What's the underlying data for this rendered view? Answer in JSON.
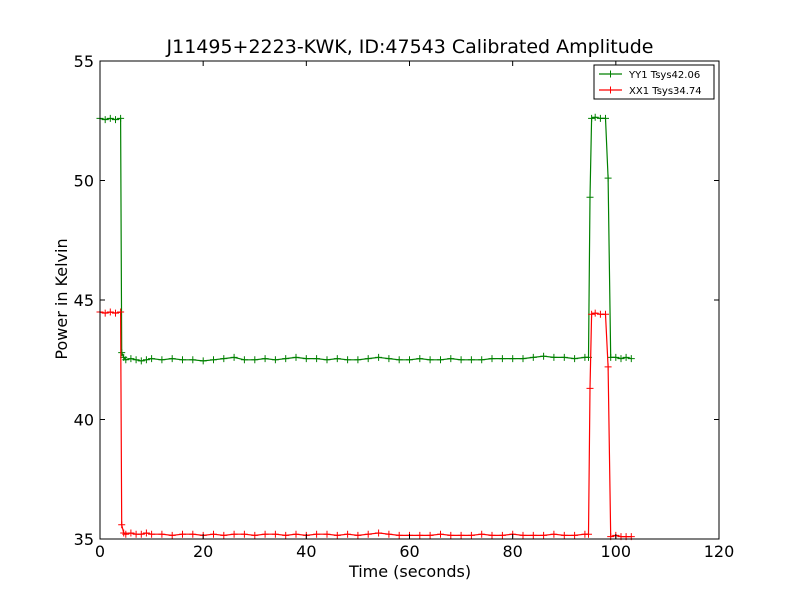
{
  "chart_data": {
    "type": "line",
    "title": "J11495+2223-KWK, ID:47543 Calibrated Amplitude",
    "xlabel": "Time (seconds)",
    "ylabel": "Power in Kelvin",
    "xlim": [
      0,
      120
    ],
    "ylim": [
      35,
      55
    ],
    "xticks": [
      0,
      20,
      40,
      60,
      80,
      100,
      120
    ],
    "yticks": [
      35,
      40,
      45,
      50,
      55
    ],
    "grid": false,
    "legend_position": "top-right",
    "series": [
      {
        "name": "YY1 Tsys42.06",
        "color": "#008000",
        "points": [
          [
            0,
            52.6
          ],
          [
            1,
            52.55
          ],
          [
            2,
            52.6
          ],
          [
            3,
            52.55
          ],
          [
            4,
            52.6
          ],
          [
            4.2,
            42.8
          ],
          [
            4.6,
            42.6
          ],
          [
            5,
            42.5
          ],
          [
            6,
            42.55
          ],
          [
            7,
            42.5
          ],
          [
            8,
            42.45
          ],
          [
            9,
            42.5
          ],
          [
            10,
            42.55
          ],
          [
            12,
            42.5
          ],
          [
            14,
            42.55
          ],
          [
            16,
            42.5
          ],
          [
            18,
            42.5
          ],
          [
            20,
            42.45
          ],
          [
            22,
            42.5
          ],
          [
            24,
            42.55
          ],
          [
            26,
            42.6
          ],
          [
            28,
            42.5
          ],
          [
            30,
            42.5
          ],
          [
            32,
            42.55
          ],
          [
            34,
            42.5
          ],
          [
            36,
            42.55
          ],
          [
            38,
            42.6
          ],
          [
            40,
            42.55
          ],
          [
            42,
            42.55
          ],
          [
            44,
            42.5
          ],
          [
            46,
            42.55
          ],
          [
            48,
            42.5
          ],
          [
            50,
            42.5
          ],
          [
            52,
            42.55
          ],
          [
            54,
            42.6
          ],
          [
            56,
            42.55
          ],
          [
            58,
            42.5
          ],
          [
            60,
            42.5
          ],
          [
            62,
            42.55
          ],
          [
            64,
            42.5
          ],
          [
            66,
            42.5
          ],
          [
            68,
            42.55
          ],
          [
            70,
            42.5
          ],
          [
            72,
            42.5
          ],
          [
            74,
            42.5
          ],
          [
            76,
            42.55
          ],
          [
            78,
            42.55
          ],
          [
            80,
            42.55
          ],
          [
            82,
            42.55
          ],
          [
            84,
            42.6
          ],
          [
            86,
            42.65
          ],
          [
            88,
            42.6
          ],
          [
            90,
            42.6
          ],
          [
            92,
            42.55
          ],
          [
            94,
            42.6
          ],
          [
            94.7,
            42.6
          ],
          [
            95,
            49.3
          ],
          [
            95.3,
            52.6
          ],
          [
            96,
            52.65
          ],
          [
            97,
            52.6
          ],
          [
            98,
            52.6
          ],
          [
            98.5,
            50.1
          ],
          [
            99,
            42.6
          ],
          [
            100,
            42.6
          ],
          [
            101,
            42.55
          ],
          [
            102,
            42.6
          ],
          [
            103,
            42.55
          ]
        ]
      },
      {
        "name": "XX1 Tsys34.74",
        "color": "#ff0000",
        "points": [
          [
            0,
            44.5
          ],
          [
            1,
            44.45
          ],
          [
            2,
            44.5
          ],
          [
            3,
            44.45
          ],
          [
            4,
            44.5
          ],
          [
            4.2,
            35.6
          ],
          [
            4.6,
            35.25
          ],
          [
            5,
            35.2
          ],
          [
            6,
            35.25
          ],
          [
            7,
            35.2
          ],
          [
            8,
            35.2
          ],
          [
            9,
            35.25
          ],
          [
            10,
            35.2
          ],
          [
            12,
            35.2
          ],
          [
            14,
            35.15
          ],
          [
            16,
            35.2
          ],
          [
            18,
            35.2
          ],
          [
            20,
            35.15
          ],
          [
            22,
            35.2
          ],
          [
            24,
            35.15
          ],
          [
            26,
            35.2
          ],
          [
            28,
            35.2
          ],
          [
            30,
            35.15
          ],
          [
            32,
            35.2
          ],
          [
            34,
            35.2
          ],
          [
            36,
            35.15
          ],
          [
            38,
            35.2
          ],
          [
            40,
            35.15
          ],
          [
            42,
            35.2
          ],
          [
            44,
            35.2
          ],
          [
            46,
            35.15
          ],
          [
            48,
            35.2
          ],
          [
            50,
            35.15
          ],
          [
            52,
            35.2
          ],
          [
            54,
            35.25
          ],
          [
            56,
            35.2
          ],
          [
            58,
            35.15
          ],
          [
            60,
            35.15
          ],
          [
            62,
            35.15
          ],
          [
            64,
            35.15
          ],
          [
            66,
            35.2
          ],
          [
            68,
            35.15
          ],
          [
            70,
            35.15
          ],
          [
            72,
            35.15
          ],
          [
            74,
            35.2
          ],
          [
            76,
            35.15
          ],
          [
            78,
            35.15
          ],
          [
            80,
            35.2
          ],
          [
            82,
            35.15
          ],
          [
            84,
            35.15
          ],
          [
            86,
            35.15
          ],
          [
            88,
            35.2
          ],
          [
            90,
            35.15
          ],
          [
            92,
            35.15
          ],
          [
            94,
            35.2
          ],
          [
            94.7,
            35.2
          ],
          [
            95,
            41.3
          ],
          [
            95.3,
            44.4
          ],
          [
            96,
            44.45
          ],
          [
            97,
            44.4
          ],
          [
            98,
            44.4
          ],
          [
            98.5,
            42.2
          ],
          [
            99,
            35.1
          ],
          [
            100,
            35.15
          ],
          [
            101,
            35.1
          ],
          [
            102,
            35.1
          ],
          [
            103,
            35.1
          ]
        ]
      }
    ]
  }
}
